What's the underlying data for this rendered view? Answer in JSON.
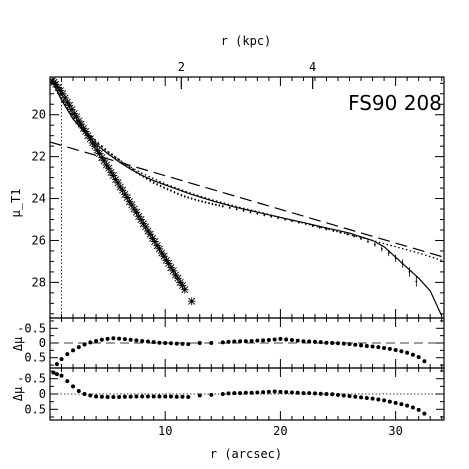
{
  "chart_data": [
    {
      "type": "scatter",
      "panel": "main",
      "title": "FS90 208",
      "xlabel": "r (arcsec)",
      "ylabel": "μ_T1",
      "xlabel_top": "r (kpc)",
      "xlim": [
        0,
        34.2
      ],
      "ylim": [
        29.7,
        18.2
      ],
      "y_inverted": true,
      "x_ticks": [
        10,
        20,
        30
      ],
      "x_ticks_top_kpc": [
        2,
        4
      ],
      "x_ticks_top_arcsec": [
        11.4,
        22.8
      ],
      "y_ticks": [
        20,
        22,
        24,
        26,
        28
      ],
      "grid": false,
      "legend": "none",
      "vertical_line_x": 1.0,
      "series": [
        {
          "style": "points-with-errorbars",
          "x": [
            0.3,
            0.6,
            0.9,
            1.2,
            1.5,
            1.8,
            2.1,
            2.4,
            2.7,
            3.0,
            3.3,
            3.6,
            3.9,
            4.2,
            4.5,
            4.8,
            5.1,
            5.4,
            5.7,
            6.0,
            6.3,
            6.6,
            6.9,
            7.2,
            7.5,
            7.8,
            8.1,
            8.4,
            8.7,
            9.0,
            9.3,
            9.6,
            9.9,
            10.2,
            10.5,
            10.8,
            11.1,
            11.4,
            11.7,
            12.0,
            12.3,
            12.6,
            12.9,
            13.2,
            13.5,
            13.8,
            14.1,
            14.4,
            14.7,
            15.0,
            15.6,
            16.2,
            16.8,
            17.4,
            18.0,
            18.6,
            19.2,
            19.8,
            20.4,
            21.0,
            21.6,
            22.2,
            22.8,
            23.4,
            24.0,
            24.6,
            25.2,
            25.8,
            26.4,
            27.0,
            27.6,
            28.2,
            28.8,
            29.4,
            30.0,
            30.6,
            31.2,
            31.8
          ],
          "y": [
            18.3,
            18.6,
            19.0,
            19.4,
            19.7,
            19.95,
            20.15,
            20.35,
            20.55,
            20.75,
            20.9,
            21.05,
            21.2,
            21.35,
            21.5,
            21.65,
            21.8,
            21.9,
            22.05,
            22.15,
            22.3,
            22.4,
            22.5,
            22.6,
            22.75,
            22.85,
            22.95,
            23.05,
            23.15,
            23.25,
            23.32,
            23.4,
            23.48,
            23.55,
            23.62,
            23.7,
            23.77,
            23.84,
            23.9,
            23.95,
            24.0,
            24.05,
            24.1,
            24.14,
            24.18,
            24.22,
            24.26,
            24.3,
            24.33,
            24.37,
            24.44,
            24.51,
            24.58,
            24.65,
            24.72,
            24.79,
            24.86,
            24.93,
            25.0,
            25.07,
            25.14,
            25.21,
            25.3,
            25.38,
            25.46,
            25.54,
            25.62,
            25.7,
            25.8,
            25.92,
            26.05,
            26.2,
            26.4,
            26.6,
            26.85,
            27.1,
            27.5,
            27.95
          ]
        },
        {
          "style": "stars",
          "x": [
            0.2,
            0.35,
            0.5,
            0.7,
            0.9,
            1.1,
            1.3,
            1.5,
            1.7,
            1.9,
            2.1,
            2.3,
            2.5,
            2.7,
            2.9,
            3.1,
            3.3,
            3.5,
            3.7,
            3.9,
            4.1,
            4.3,
            4.5,
            4.7,
            4.9,
            5.1,
            5.3,
            5.5,
            5.7,
            5.9,
            6.1,
            6.3,
            6.5,
            6.7,
            6.9,
            7.1,
            7.3,
            7.5,
            7.7,
            7.9,
            8.1,
            8.3,
            8.5,
            8.7,
            8.9,
            9.1,
            9.3,
            9.5,
            9.7,
            9.9,
            10.1,
            10.3,
            10.5,
            10.7,
            10.9,
            11.1,
            11.3,
            11.5,
            11.7,
            12.3
          ],
          "y": [
            18.4,
            18.45,
            18.55,
            18.7,
            18.85,
            19.0,
            19.2,
            19.4,
            19.55,
            19.75,
            19.95,
            20.1,
            20.3,
            20.45,
            20.65,
            20.8,
            21.0,
            21.15,
            21.35,
            21.5,
            21.7,
            21.85,
            22.05,
            22.2,
            22.4,
            22.55,
            22.75,
            22.9,
            23.1,
            23.25,
            23.45,
            23.6,
            23.8,
            23.95,
            24.15,
            24.3,
            24.5,
            24.65,
            24.85,
            25.0,
            25.2,
            25.35,
            25.55,
            25.7,
            25.9,
            26.05,
            26.25,
            26.4,
            26.6,
            26.75,
            26.95,
            27.1,
            27.3,
            27.45,
            27.65,
            27.8,
            28.0,
            28.15,
            28.35,
            28.9
          ]
        },
        {
          "style": "solid-line",
          "x": [
            0.2,
            1,
            2,
            3,
            4,
            5,
            6,
            7,
            8,
            9,
            10,
            11,
            12,
            14,
            16,
            18,
            20,
            22,
            24,
            26,
            28,
            29,
            30,
            31,
            32,
            33,
            34
          ],
          "y": [
            18.4,
            19.3,
            20.2,
            20.85,
            21.4,
            21.85,
            22.25,
            22.6,
            22.9,
            23.15,
            23.35,
            23.55,
            23.75,
            24.1,
            24.4,
            24.65,
            24.9,
            25.15,
            25.4,
            25.65,
            26.0,
            26.3,
            26.8,
            27.3,
            27.8,
            28.4,
            29.6
          ]
        },
        {
          "style": "dotted-line",
          "x": [
            0.2,
            1,
            2,
            3,
            4,
            5,
            6,
            7,
            8,
            9,
            10,
            12,
            14,
            16,
            20,
            24,
            28,
            32,
            34
          ],
          "y": [
            18.3,
            19.2,
            20.05,
            20.75,
            21.3,
            21.75,
            22.15,
            22.5,
            22.8,
            23.05,
            23.3,
            23.7,
            24.05,
            24.35,
            24.9,
            25.45,
            26.0,
            26.6,
            26.95
          ]
        },
        {
          "style": "dashed-line",
          "x": [
            0,
            34.2
          ],
          "y": [
            21.3,
            26.8
          ]
        }
      ]
    },
    {
      "type": "scatter",
      "panel": "residual-1",
      "ylabel": "Δμ",
      "xlim": [
        0,
        34.2
      ],
      "ylim": [
        0.85,
        -0.85
      ],
      "y_inverted": true,
      "y_ticks": [
        0.5,
        0,
        -0.5
      ],
      "y_tick_labels": [
        "0.5",
        "0",
        "-0.5"
      ],
      "zero_line": "dashed",
      "x": [
        0.6,
        1.0,
        1.5,
        2.0,
        2.5,
        3.0,
        3.5,
        4.0,
        4.5,
        5.0,
        5.5,
        6.0,
        6.5,
        7.0,
        7.5,
        8.0,
        8.5,
        9.0,
        9.5,
        10.0,
        10.5,
        11.0,
        11.5,
        12.0,
        13.0,
        14.0,
        15.0,
        15.5,
        16.0,
        16.5,
        17.0,
        17.5,
        18.0,
        18.5,
        19.0,
        19.5,
        20.0,
        20.5,
        21.0,
        21.5,
        22.0,
        22.5,
        23.0,
        23.5,
        24.0,
        24.5,
        25.0,
        25.5,
        26.0,
        26.5,
        27.0,
        27.5,
        28.0,
        28.5,
        29.0,
        29.5,
        30.0,
        30.5,
        31.0,
        31.5,
        32.0,
        32.5
      ],
      "y": [
        0.72,
        0.55,
        0.38,
        0.25,
        0.14,
        0.05,
        -0.02,
        -0.07,
        -0.11,
        -0.14,
        -0.16,
        -0.15,
        -0.13,
        -0.11,
        -0.09,
        -0.07,
        -0.05,
        -0.03,
        -0.01,
        0.0,
        0.01,
        0.02,
        0.03,
        0.04,
        0.0,
        0.0,
        -0.02,
        -0.04,
        -0.05,
        -0.06,
        -0.06,
        -0.07,
        -0.08,
        -0.09,
        -0.1,
        -0.12,
        -0.14,
        -0.12,
        -0.1,
        -0.08,
        -0.06,
        -0.05,
        -0.04,
        -0.03,
        -0.01,
        0.0,
        0.01,
        0.02,
        0.04,
        0.06,
        0.08,
        0.1,
        0.12,
        0.14,
        0.17,
        0.2,
        0.24,
        0.28,
        0.33,
        0.4,
        0.48,
        0.62
      ]
    },
    {
      "type": "scatter",
      "panel": "residual-2",
      "ylabel": "Δμ",
      "xlim": [
        0,
        34.2
      ],
      "ylim": [
        0.85,
        -0.85
      ],
      "y_inverted": true,
      "y_ticks": [
        0.5,
        0,
        -0.5
      ],
      "y_tick_labels": [
        "0.5",
        "0",
        "-0.5"
      ],
      "zero_line": "dotted",
      "x": [
        0.3,
        0.6,
        1.0,
        1.5,
        2.0,
        2.5,
        3.0,
        3.5,
        4.0,
        4.5,
        5.0,
        5.5,
        6.0,
        6.5,
        7.0,
        7.5,
        8.0,
        8.5,
        9.0,
        9.5,
        10.0,
        10.5,
        11.0,
        11.5,
        12.0,
        13.0,
        14.0,
        15.0,
        15.5,
        16.0,
        16.5,
        17.0,
        17.5,
        18.0,
        18.5,
        19.0,
        19.5,
        20.0,
        20.5,
        21.0,
        21.5,
        22.0,
        22.5,
        23.0,
        23.5,
        24.0,
        24.5,
        25.0,
        25.5,
        26.0,
        26.5,
        27.0,
        27.5,
        28.0,
        28.5,
        29.0,
        29.5,
        30.0,
        30.5,
        31.0,
        31.5,
        32.0,
        32.5
      ],
      "y": [
        -0.7,
        -0.65,
        -0.6,
        -0.42,
        -0.25,
        -0.1,
        0.0,
        0.05,
        0.08,
        0.09,
        0.1,
        0.1,
        0.1,
        0.09,
        0.09,
        0.08,
        0.08,
        0.08,
        0.08,
        0.08,
        0.08,
        0.08,
        0.09,
        0.09,
        0.1,
        0.05,
        0.03,
        0.0,
        -0.02,
        -0.03,
        -0.03,
        -0.04,
        -0.04,
        -0.05,
        -0.06,
        -0.07,
        -0.08,
        -0.07,
        -0.06,
        -0.05,
        -0.04,
        -0.03,
        -0.03,
        -0.02,
        -0.01,
        0.0,
        0.01,
        0.03,
        0.05,
        0.07,
        0.09,
        0.11,
        0.13,
        0.15,
        0.18,
        0.21,
        0.25,
        0.29,
        0.33,
        0.38,
        0.44,
        0.52,
        0.64
      ]
    }
  ]
}
